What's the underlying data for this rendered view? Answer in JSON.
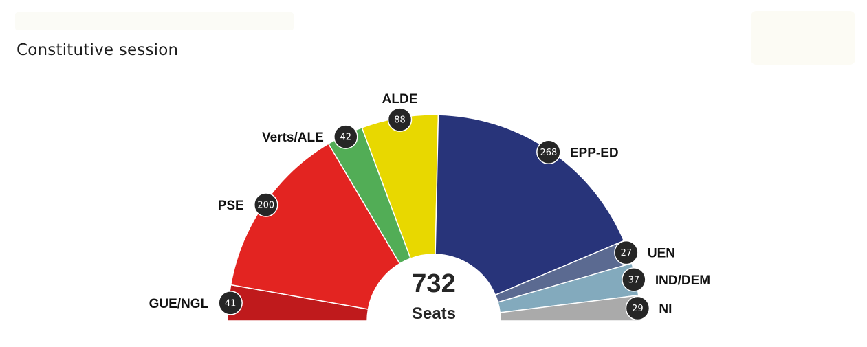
{
  "subtitle": "Constitutive session",
  "chart_data": {
    "type": "parliament-hemicycle",
    "total": "732",
    "total_label": "Seats",
    "parties": [
      {
        "name": "GUE/NGL",
        "seats": 41,
        "color": "#bf1a1c"
      },
      {
        "name": "PSE",
        "seats": 200,
        "color": "#e32421"
      },
      {
        "name": "Verts/ALE",
        "seats": 42,
        "color": "#52ad56"
      },
      {
        "name": "ALDE",
        "seats": 88,
        "color": "#e8d800"
      },
      {
        "name": "EPP-ED",
        "seats": 268,
        "color": "#28347a"
      },
      {
        "name": "UEN",
        "seats": 27,
        "color": "#5b6a91"
      },
      {
        "name": "IND/DEM",
        "seats": 37,
        "color": "#83aabd"
      },
      {
        "name": "NI",
        "seats": 29,
        "color": "#aaaaaa"
      }
    ]
  }
}
